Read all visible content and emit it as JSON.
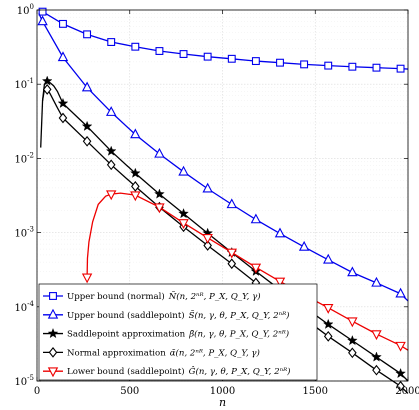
{
  "chart_data": {
    "type": "line",
    "xlabel": "n",
    "ylabel": "",
    "xlim": [
      0,
      2000
    ],
    "ylim": [
      1e-05,
      1
    ],
    "yscale": "log",
    "grid": true,
    "legend_position": "bottom-left",
    "x_ticks": [
      "0",
      "500",
      "1000",
      "1500",
      "2000"
    ],
    "y_ticks": [
      {
        "base": "10",
        "exp": "0"
      },
      {
        "base": "10",
        "exp": "-1"
      },
      {
        "base": "10",
        "exp": "-2"
      },
      {
        "base": "10",
        "exp": "-3"
      },
      {
        "base": "10",
        "exp": "-4"
      },
      {
        "base": "10",
        "exp": "-5"
      }
    ],
    "series": [
      {
        "name": "Upper bound (normal) Ñ(n, 2^{nR}, P_X, Q_Y, γ)",
        "legend_main": "Upper bound (normal)",
        "legend_math": "Ñ(n, 2ⁿᴿ, P_X, Q_Y, γ)",
        "color": "#0000ee",
        "marker": "square",
        "x": [
          30,
          140,
          270,
          400,
          530,
          660,
          790,
          920,
          1050,
          1180,
          1310,
          1440,
          1570,
          1700,
          1830,
          1960,
          2000
        ],
        "y": [
          0.95,
          0.65,
          0.47,
          0.37,
          0.32,
          0.28,
          0.255,
          0.235,
          0.22,
          0.205,
          0.195,
          0.185,
          0.178,
          0.172,
          0.167,
          0.162,
          0.16
        ],
        "marker_x": [
          30,
          140,
          270,
          400,
          530,
          660,
          790,
          920,
          1050,
          1180,
          1310,
          1440,
          1570,
          1700,
          1830,
          1960
        ]
      },
      {
        "name": "Upper bound (saddlepoint) S̃(n, γ, θ, P_X, Q_Y, 2^{nR})",
        "legend_main": "Upper bound (saddlepoint)",
        "legend_math": "S̃(n, γ, θ, P_X, Q_Y, 2ⁿᴿ)",
        "color": "#0000ee",
        "marker": "triangle-up",
        "x": [
          10,
          30,
          140,
          270,
          400,
          530,
          660,
          790,
          920,
          1050,
          1180,
          1310,
          1440,
          1570,
          1700,
          1830,
          1960,
          2000
        ],
        "y": [
          0.9,
          0.7,
          0.23,
          0.09,
          0.042,
          0.021,
          0.0115,
          0.0066,
          0.0039,
          0.0024,
          0.0015,
          0.00097,
          0.00064,
          0.00043,
          0.00029,
          0.00021,
          0.00015,
          0.00012
        ],
        "marker_x": [
          30,
          140,
          270,
          400,
          530,
          660,
          790,
          920,
          1050,
          1180,
          1310,
          1440,
          1570,
          1700,
          1830,
          1960
        ]
      },
      {
        "name": "Saddlepoint approximation β̂(n, γ, θ, P_X, Q_Y, 2^{nR})",
        "legend_main": "Saddlepoint approximation",
        "legend_math": "β̂(n, γ, θ, P_X, Q_Y, 2ⁿᴿ)",
        "color": "#000000",
        "marker": "star",
        "x": [
          20,
          30,
          40,
          55,
          70,
          90,
          110,
          140,
          270,
          400,
          530,
          660,
          790,
          920,
          1050,
          1180,
          1310,
          1440,
          1570,
          1700,
          1830,
          1960,
          2000
        ],
        "y": [
          0.014,
          0.06,
          0.1,
          0.11,
          0.105,
          0.095,
          0.08,
          0.055,
          0.027,
          0.0125,
          0.0063,
          0.0033,
          0.0018,
          0.00098,
          0.00054,
          0.0003,
          0.00017,
          0.0001,
          5.8e-05,
          3.5e-05,
          2.1e-05,
          1.26e-05,
          1e-05
        ],
        "marker_x": [
          55,
          140,
          270,
          400,
          530,
          660,
          790,
          920,
          1050,
          1180,
          1310,
          1440,
          1570,
          1700,
          1830,
          1960
        ]
      },
      {
        "name": "Normal approximation α̃(n, 2^{nR}, P_X, Q_Y, γ)",
        "legend_main": "Normal approximation",
        "legend_math": "α̃(n, 2ⁿᴿ, P_X, Q_Y, γ)",
        "color": "#000000",
        "marker": "diamond",
        "x": [
          30,
          40,
          55,
          70,
          90,
          110,
          140,
          270,
          400,
          530,
          660,
          790,
          920,
          1050,
          1180,
          1310,
          1440,
          1570,
          1700,
          1830,
          1960,
          2000
        ],
        "y": [
          0.06,
          0.085,
          0.085,
          0.075,
          0.06,
          0.048,
          0.035,
          0.017,
          0.0082,
          0.0042,
          0.0022,
          0.0012,
          0.00067,
          0.00038,
          0.00021,
          0.00012,
          7e-05,
          4e-05,
          2.4e-05,
          1.4e-05,
          8.5e-06,
          6.8e-06
        ],
        "marker_x": [
          55,
          140,
          270,
          400,
          530,
          660,
          790,
          920,
          1050,
          1180,
          1310,
          1440,
          1570,
          1700,
          1830,
          1960
        ]
      },
      {
        "name": "Lower bound (saddlepoint) Ĝ(n, γ, θ, P_X, Q_Y, 2^{nR})",
        "legend_main": "Lower bound (saddlepoint)",
        "legend_math": "Ĝ(n, γ, θ, P_X, Q_Y, 2ⁿᴿ)",
        "color": "#ee0000",
        "marker": "triangle-down",
        "x": [
          270,
          272,
          280,
          300,
          330,
          370,
          400,
          450,
          530,
          660,
          790,
          920,
          1050,
          1180,
          1310,
          1440,
          1570,
          1700,
          1830,
          1960,
          2000
        ],
        "y": [
          0.00025,
          0.00045,
          0.00075,
          0.0014,
          0.0024,
          0.0031,
          0.0033,
          0.0034,
          0.0032,
          0.0022,
          0.00135,
          0.00085,
          0.00054,
          0.00034,
          0.00022,
          0.000145,
          9.7e-05,
          6.4e-05,
          4.3e-05,
          3e-05,
          2.6e-05
        ],
        "marker_x": [
          270,
          400,
          530,
          660,
          790,
          920,
          1050,
          1180,
          1310,
          1440,
          1570,
          1700,
          1830,
          1960
        ]
      }
    ]
  }
}
